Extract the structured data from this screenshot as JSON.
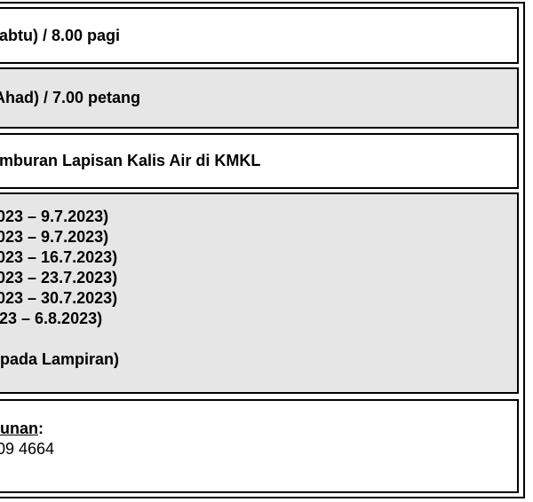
{
  "page": {
    "background_color": "#ffffff",
    "border_color": "#000000",
    "shaded_row_color": "#e7e6e6"
  },
  "rows": [
    {
      "text": "abtu) / 8.00 pagi"
    },
    {
      "text": "Ahad) / 7.00 petang"
    },
    {
      "text": "mburan Lapisan Kalis Air di KMKL"
    },
    {
      "lines": [
        "023 – 9.7.2023)",
        "023 – 9.7.2023)",
        "023 – 16.7.2023)",
        "023 – 23.7.2023)",
        "023 – 30.7.2023)",
        "23 – 6.8.2023)",
        "",
        "pada Lampiran)"
      ]
    },
    {
      "heading_underlined": "unan",
      "heading_colon": ":",
      "phone": "09 4664"
    }
  ]
}
